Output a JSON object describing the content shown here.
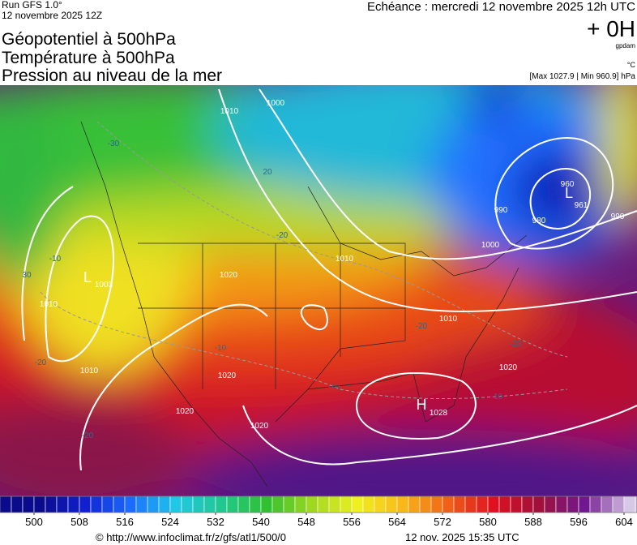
{
  "header": {
    "run": "Run GFS 1.0°",
    "run_date": "12 novembre 2025 12Z",
    "echeance": "Echéance : mercredi 12 novembre 2025 12h UTC",
    "offset": "+ 0H",
    "unit_geo": "gpdam",
    "unit_temp": "°C",
    "pressure_range": "[Max 1027.9 | Min 960.9] hPa"
  },
  "titles": [
    "Géopotentiel à 500hPa",
    "Température à 500hPa",
    "Pression au niveau de la mer"
  ],
  "map": {
    "labels": [
      "1010",
      "1000",
      "1010",
      "1020",
      "1010",
      "1000",
      "990",
      "980",
      "990",
      "960",
      "L",
      "961",
      "H",
      "1028",
      "L",
      "1003",
      "1020",
      "1020",
      "1020",
      "1010",
      "1010",
      "1020",
      "30",
      "20",
      "-20",
      "-20",
      "-20",
      "-10",
      "-10",
      "-20",
      "-10",
      "-20",
      "-10",
      "-30"
    ]
  },
  "colorbar": {
    "ticks": [
      500,
      508,
      516,
      524,
      532,
      540,
      548,
      556,
      564,
      572,
      580,
      588,
      596,
      604
    ],
    "colors": [
      "#0a0a8c",
      "#1020d0",
      "#1a6cff",
      "#20c8e8",
      "#20c890",
      "#30c030",
      "#a0d820",
      "#f0f020",
      "#f8b818",
      "#f06018",
      "#e01020",
      "#a0103a",
      "#701890",
      "#d8c8e8"
    ]
  },
  "footer": {
    "source": "© http://www.infoclimat.fr/z/gfs/atl1/500/0",
    "generated": "12 nov. 2025 15:35 UTC"
  }
}
